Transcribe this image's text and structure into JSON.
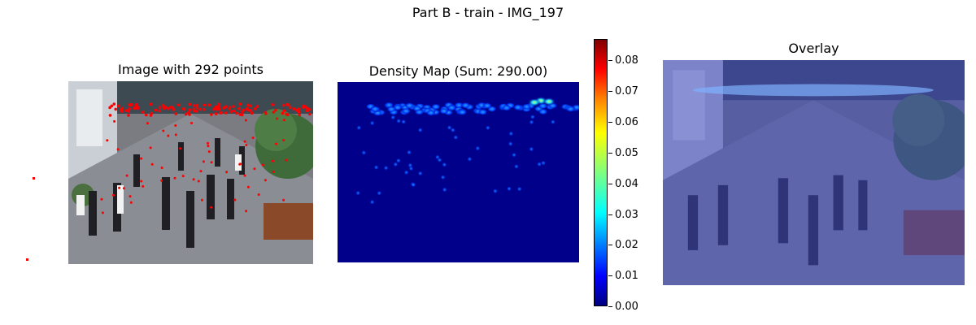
{
  "figure": {
    "suptitle": "Part B - train - IMG_197",
    "panels": {
      "image": {
        "title": "Image with 292 points"
      },
      "density": {
        "title": "Density Map (Sum: 290.00)"
      },
      "overlay": {
        "title": "Overlay"
      }
    }
  },
  "colors": {
    "annotation_point": "#ff0000",
    "density_background": "#00008b",
    "overlay_tint": "#3c46be"
  },
  "chart_data": {
    "type": "heatmap",
    "title": "Density Map (Sum: 290.00)",
    "colormap": "jet",
    "point_count": 292,
    "density_sum": 290.0,
    "colorbar": {
      "range": [
        0.0,
        0.087
      ],
      "ticks": [
        "0.00",
        "0.01",
        "0.02",
        "0.03",
        "0.04",
        "0.05",
        "0.06",
        "0.07",
        "0.08"
      ],
      "tick_values": [
        0.0,
        0.01,
        0.02,
        0.03,
        0.04,
        0.05,
        0.06,
        0.07,
        0.08
      ]
    },
    "grid": false
  }
}
